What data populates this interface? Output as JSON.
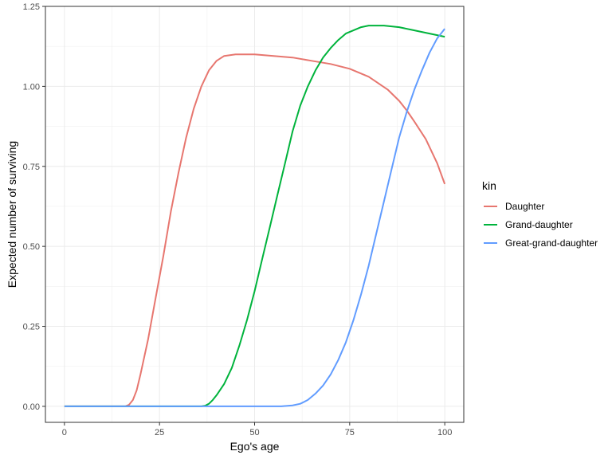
{
  "chart_data": {
    "type": "line",
    "title": "",
    "xlabel": "Ego's age",
    "ylabel": "Expected number of surviving",
    "xlim": [
      -5,
      105
    ],
    "ylim": [
      -0.05,
      1.25
    ],
    "xticks": [
      0,
      25,
      50,
      75,
      100
    ],
    "xtick_labels": [
      "0",
      "25",
      "50",
      "75",
      "100"
    ],
    "yticks": [
      0,
      0.25,
      0.5,
      0.75,
      1.0,
      1.25
    ],
    "ytick_labels": [
      "0.00",
      "0.25",
      "0.50",
      "0.75",
      "1.00",
      "1.25"
    ],
    "grid": true,
    "legend": {
      "title": "kin",
      "position": "right"
    },
    "series": [
      {
        "name": "Daughter",
        "color": "#E7766F",
        "points": [
          [
            0,
            0
          ],
          [
            16,
            0
          ],
          [
            17,
            0.005
          ],
          [
            18,
            0.02
          ],
          [
            19,
            0.05
          ],
          [
            20,
            0.1
          ],
          [
            22,
            0.21
          ],
          [
            24,
            0.34
          ],
          [
            26,
            0.47
          ],
          [
            28,
            0.61
          ],
          [
            30,
            0.73
          ],
          [
            32,
            0.84
          ],
          [
            34,
            0.93
          ],
          [
            36,
            1.0
          ],
          [
            38,
            1.05
          ],
          [
            40,
            1.08
          ],
          [
            42,
            1.095
          ],
          [
            45,
            1.1
          ],
          [
            50,
            1.1
          ],
          [
            55,
            1.095
          ],
          [
            60,
            1.09
          ],
          [
            65,
            1.08
          ],
          [
            70,
            1.07
          ],
          [
            75,
            1.055
          ],
          [
            80,
            1.03
          ],
          [
            85,
            0.99
          ],
          [
            88,
            0.955
          ],
          [
            90,
            0.925
          ],
          [
            92,
            0.89
          ],
          [
            95,
            0.835
          ],
          [
            98,
            0.76
          ],
          [
            100,
            0.695
          ]
        ]
      },
      {
        "name": "Grand-daughter",
        "color": "#00B33C",
        "points": [
          [
            0,
            0
          ],
          [
            36,
            0
          ],
          [
            37,
            0.002
          ],
          [
            38,
            0.008
          ],
          [
            39,
            0.02
          ],
          [
            40,
            0.035
          ],
          [
            42,
            0.07
          ],
          [
            44,
            0.12
          ],
          [
            46,
            0.19
          ],
          [
            48,
            0.27
          ],
          [
            50,
            0.36
          ],
          [
            52,
            0.46
          ],
          [
            54,
            0.56
          ],
          [
            56,
            0.66
          ],
          [
            58,
            0.76
          ],
          [
            60,
            0.86
          ],
          [
            62,
            0.94
          ],
          [
            64,
            1.0
          ],
          [
            66,
            1.05
          ],
          [
            68,
            1.09
          ],
          [
            70,
            1.12
          ],
          [
            72,
            1.145
          ],
          [
            74,
            1.165
          ],
          [
            76,
            1.175
          ],
          [
            78,
            1.185
          ],
          [
            80,
            1.19
          ],
          [
            84,
            1.19
          ],
          [
            88,
            1.185
          ],
          [
            92,
            1.175
          ],
          [
            96,
            1.165
          ],
          [
            100,
            1.155
          ]
        ]
      },
      {
        "name": "Great-grand-daughter",
        "color": "#619CFF",
        "points": [
          [
            0,
            0
          ],
          [
            57,
            0
          ],
          [
            60,
            0.003
          ],
          [
            62,
            0.008
          ],
          [
            64,
            0.02
          ],
          [
            66,
            0.04
          ],
          [
            68,
            0.065
          ],
          [
            70,
            0.1
          ],
          [
            72,
            0.145
          ],
          [
            74,
            0.2
          ],
          [
            76,
            0.27
          ],
          [
            78,
            0.35
          ],
          [
            80,
            0.44
          ],
          [
            82,
            0.54
          ],
          [
            84,
            0.64
          ],
          [
            86,
            0.74
          ],
          [
            88,
            0.84
          ],
          [
            90,
            0.92
          ],
          [
            92,
            0.99
          ],
          [
            94,
            1.05
          ],
          [
            96,
            1.105
          ],
          [
            98,
            1.15
          ],
          [
            100,
            1.18
          ]
        ]
      }
    ]
  }
}
